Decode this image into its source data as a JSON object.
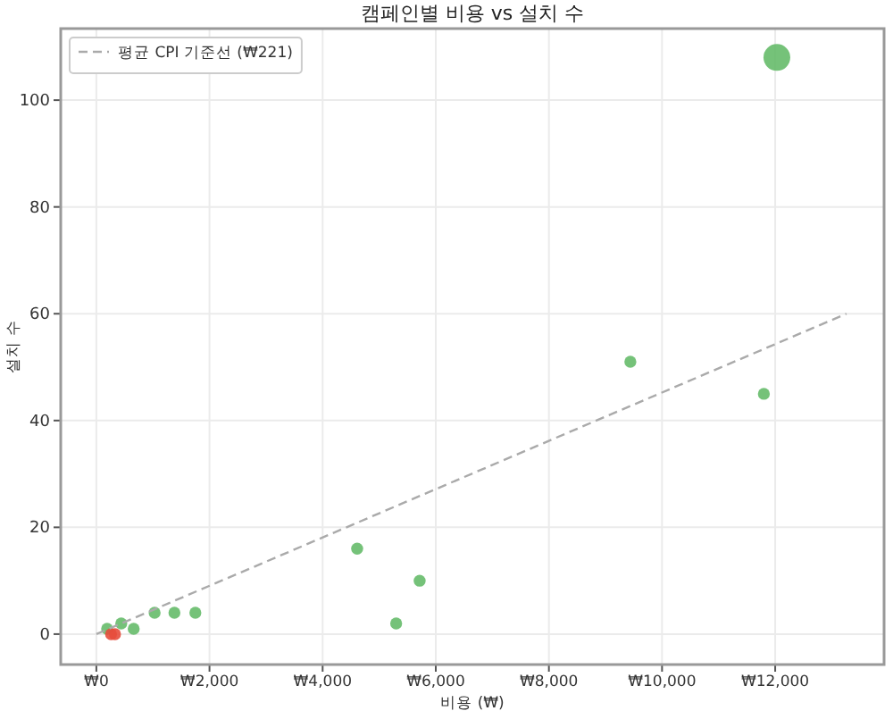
{
  "chart_data": {
    "type": "bubble",
    "title": "캠페인별 비용 vs 설치 수",
    "xlabel": "비용 (₩)",
    "ylabel": "설치 수",
    "xlim": [
      -630,
      13925
    ],
    "ylim": [
      -5.7,
      113.4
    ],
    "xticks": [
      {
        "value": 0,
        "label": "₩0"
      },
      {
        "value": 2000,
        "label": "₩2,000"
      },
      {
        "value": 4000,
        "label": "₩4,000"
      },
      {
        "value": 6000,
        "label": "₩6,000"
      },
      {
        "value": 8000,
        "label": "₩8,000"
      },
      {
        "value": 10000,
        "label": "₩10,000"
      },
      {
        "value": 12000,
        "label": "₩12,000"
      }
    ],
    "yticks": [
      0,
      20,
      40,
      60,
      80,
      100
    ],
    "grid": true,
    "legend": "top left",
    "series": [
      {
        "color": "#66bb6a",
        "x": [
          12030,
          9440,
          11800,
          4610,
          5715,
          5300,
          1380,
          1750,
          1030,
          660,
          440,
          190
        ],
        "values": [
          108,
          51,
          45,
          16,
          10,
          2,
          4,
          4,
          4,
          1,
          2,
          1
        ],
        "sizes": [
          1,
          0.2,
          0.2,
          0.2,
          0.2,
          0.2,
          0.2,
          0.2,
          0.2,
          0.2,
          0.2,
          0.2
        ]
      },
      {
        "color": "#e74c3c",
        "x": [
          260,
          330
        ],
        "values": [
          0,
          0
        ],
        "sizes": [
          0.2,
          0.2
        ]
      },
      {
        "type": "line",
        "name": "평균 CPI 기준선 (₩221)",
        "color": "#aaaaaa",
        "line_style": "dashed",
        "x": [
          0,
          13260
        ],
        "values": [
          0,
          60
        ]
      }
    ]
  }
}
